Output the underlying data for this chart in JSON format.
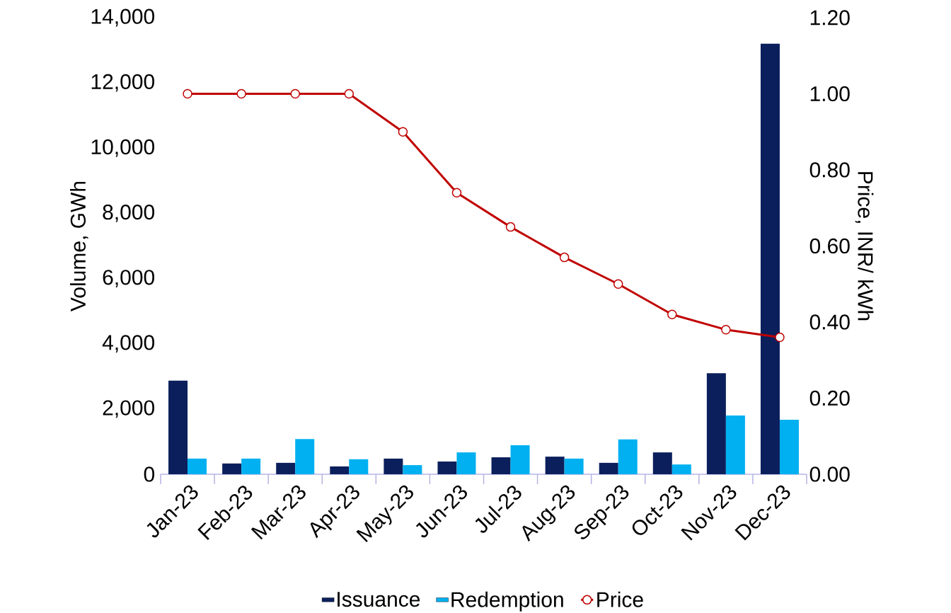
{
  "chart_data": {
    "type": "bar",
    "categories": [
      "Jan-23",
      "Feb-23",
      "Mar-23",
      "Apr-23",
      "May-23",
      "Jun-23",
      "Jul-23",
      "Aug-23",
      "Sep-23",
      "Oct-23",
      "Nov-23",
      "Dec-23"
    ],
    "series": [
      {
        "name": "Issuance",
        "color": "#0b1f5c",
        "values": [
          2870,
          330,
          350,
          240,
          480,
          390,
          520,
          540,
          350,
          670,
          3100,
          13200
        ]
      },
      {
        "name": "Redemption",
        "color": "#00b0f0",
        "values": [
          480,
          480,
          1080,
          460,
          280,
          670,
          890,
          480,
          1070,
          300,
          1800,
          1670
        ]
      },
      {
        "name": "Price",
        "type": "line",
        "axis": "y2",
        "color": "#c00000",
        "values": [
          1.0,
          1.0,
          1.0,
          1.0,
          0.9,
          0.74,
          0.65,
          0.57,
          0.5,
          0.42,
          0.38,
          0.36
        ]
      }
    ],
    "ylabel": "Volume, GWh",
    "y2label": "Price, INR/ kWh",
    "ylim": [
      0,
      14000
    ],
    "yticks": [
      0,
      {
        "value": 2000,
        "label": "2,000"
      },
      {
        "value": 4000,
        "label": "4,000"
      },
      {
        "value": 6000,
        "label": "6,000"
      },
      {
        "value": 8000,
        "label": "8,000"
      },
      {
        "value": 10000,
        "label": "10,000"
      },
      {
        "value": 12000,
        "label": "12,000"
      },
      {
        "value": 14000,
        "label": "14,000"
      }
    ],
    "y2lim": [
      0,
      1.2
    ],
    "y2ticks": [
      {
        "value": 0,
        "label": "0.00"
      },
      {
        "value": 0.2,
        "label": "0.20"
      },
      {
        "value": 0.4,
        "label": "0.40"
      },
      {
        "value": 0.6,
        "label": "0.60"
      },
      {
        "value": 0.8,
        "label": "0.80"
      },
      {
        "value": 1.0,
        "label": "1.00"
      },
      {
        "value": 1.2,
        "label": "1.20"
      }
    ],
    "legend": "bottom",
    "grid": false,
    "marker": "circle",
    "line_style": "solid"
  }
}
